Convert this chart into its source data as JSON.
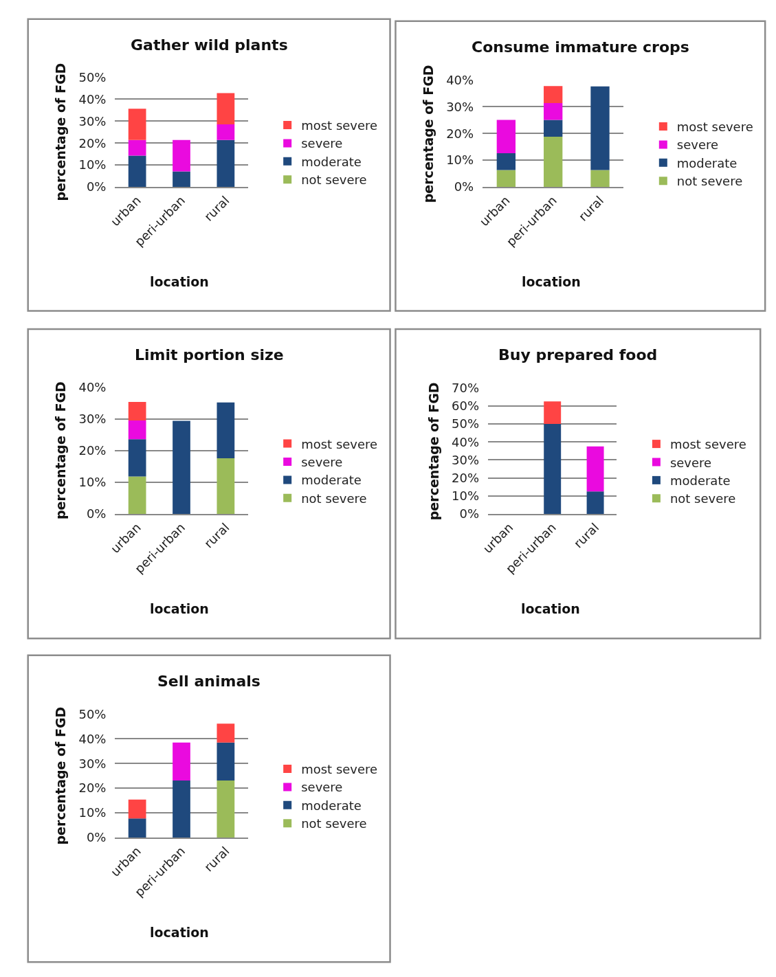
{
  "chart_data": [
    {
      "type": "bar",
      "stacked": true,
      "title": "Gather wild plants",
      "xlabel": "location",
      "ylabel": "percentage of FGD",
      "categories": [
        "urban",
        "peri-urban",
        "rural"
      ],
      "grid": "y",
      "legend": "right",
      "ylim": [
        0,
        50
      ],
      "yticks": [
        {
          "value": 0,
          "label": "0%"
        },
        {
          "value": 10,
          "label": "10%"
        },
        {
          "value": 20,
          "label": "20%"
        },
        {
          "value": 30,
          "label": "30%"
        },
        {
          "value": 40,
          "label": "40%"
        },
        {
          "value": 50,
          "label": "50%"
        }
      ],
      "series": [
        {
          "name": "not severe",
          "color": "#9bbb59",
          "values": [
            null,
            null,
            null
          ]
        },
        {
          "name": "moderate",
          "color": "#1f497d",
          "values": [
            14.3,
            7.1,
            21.4
          ]
        },
        {
          "name": "severe",
          "color": "#ea0adf",
          "values": [
            7.1,
            14.3,
            7.1
          ]
        },
        {
          "name": "most severe",
          "color": "#ff4444",
          "values": [
            14.3,
            null,
            14.3
          ]
        }
      ]
    },
    {
      "type": "bar",
      "stacked": true,
      "title": "Consume immature crops",
      "xlabel": "location",
      "ylabel": "percentage of FGD",
      "categories": [
        "urban",
        "peri-urban",
        "rural"
      ],
      "grid": "y",
      "legend": "right",
      "ylim": [
        0,
        40
      ],
      "yticks": [
        {
          "value": 0,
          "label": "0%"
        },
        {
          "value": 10,
          "label": "10%"
        },
        {
          "value": 20,
          "label": "20%"
        },
        {
          "value": 30,
          "label": "30%"
        },
        {
          "value": 40,
          "label": "40%"
        }
      ],
      "series": [
        {
          "name": "not severe",
          "color": "#9bbb59",
          "values": [
            6.3,
            18.8,
            6.3
          ]
        },
        {
          "name": "moderate",
          "color": "#1f497d",
          "values": [
            6.3,
            6.3,
            31.3
          ]
        },
        {
          "name": "severe",
          "color": "#ea0adf",
          "values": [
            12.5,
            6.3,
            null
          ]
        },
        {
          "name": "most severe",
          "color": "#ff4444",
          "values": [
            null,
            6.3,
            null
          ]
        }
      ]
    },
    {
      "type": "bar",
      "stacked": true,
      "title": "Limit portion size",
      "xlabel": "location",
      "ylabel": "percentage of FGD",
      "categories": [
        "urban",
        "peri-urban",
        "rural"
      ],
      "grid": "y",
      "legend": "right",
      "ylim": [
        0,
        40
      ],
      "yticks": [
        {
          "value": 0,
          "label": "0%"
        },
        {
          "value": 10,
          "label": "10%"
        },
        {
          "value": 20,
          "label": "20%"
        },
        {
          "value": 30,
          "label": "30%"
        },
        {
          "value": 40,
          "label": "40%"
        }
      ],
      "series": [
        {
          "name": "not severe",
          "color": "#9bbb59",
          "values": [
            11.8,
            null,
            17.6
          ]
        },
        {
          "name": "moderate",
          "color": "#1f497d",
          "values": [
            11.8,
            29.4,
            17.6
          ]
        },
        {
          "name": "severe",
          "color": "#ea0adf",
          "values": [
            5.9,
            null,
            null
          ]
        },
        {
          "name": "most severe",
          "color": "#ff4444",
          "values": [
            5.9,
            null,
            null
          ]
        }
      ]
    },
    {
      "type": "bar",
      "stacked": true,
      "title": "Buy prepared food",
      "xlabel": "location",
      "ylabel": "percentage of FGD",
      "categories": [
        "urban",
        "peri-urban",
        "rural"
      ],
      "grid": "y",
      "legend": "right",
      "ylim": [
        0,
        70
      ],
      "yticks": [
        {
          "value": 0,
          "label": "0%"
        },
        {
          "value": 10,
          "label": "10%"
        },
        {
          "value": 20,
          "label": "20%"
        },
        {
          "value": 30,
          "label": "30%"
        },
        {
          "value": 40,
          "label": "40%"
        },
        {
          "value": 50,
          "label": "50%"
        },
        {
          "value": 60,
          "label": "60%"
        },
        {
          "value": 70,
          "label": "70%"
        }
      ],
      "series": [
        {
          "name": "not severe",
          "color": "#9bbb59",
          "values": [
            null,
            null,
            null
          ]
        },
        {
          "name": "moderate",
          "color": "#1f497d",
          "values": [
            null,
            50,
            12.5
          ]
        },
        {
          "name": "severe",
          "color": "#ea0adf",
          "values": [
            null,
            null,
            25
          ]
        },
        {
          "name": "most severe",
          "color": "#ff4444",
          "values": [
            null,
            12.5,
            null
          ]
        }
      ]
    },
    {
      "type": "bar",
      "stacked": true,
      "title": "Sell animals",
      "xlabel": "location",
      "ylabel": "percentage of FGD",
      "categories": [
        "urban",
        "peri-urban",
        "rural"
      ],
      "grid": "y",
      "legend": "right",
      "ylim": [
        0,
        50
      ],
      "yticks": [
        {
          "value": 0,
          "label": "0%"
        },
        {
          "value": 10,
          "label": "10%"
        },
        {
          "value": 20,
          "label": "20%"
        },
        {
          "value": 30,
          "label": "30%"
        },
        {
          "value": 40,
          "label": "40%"
        },
        {
          "value": 50,
          "label": "50%"
        }
      ],
      "series": [
        {
          "name": "not severe",
          "color": "#9bbb59",
          "values": [
            null,
            null,
            23.1
          ]
        },
        {
          "name": "moderate",
          "color": "#1f497d",
          "values": [
            7.7,
            23.1,
            15.4
          ]
        },
        {
          "name": "severe",
          "color": "#ea0adf",
          "values": [
            null,
            15.4,
            null
          ]
        },
        {
          "name": "most severe",
          "color": "#ff4444",
          "values": [
            7.7,
            null,
            7.7
          ]
        }
      ]
    }
  ]
}
